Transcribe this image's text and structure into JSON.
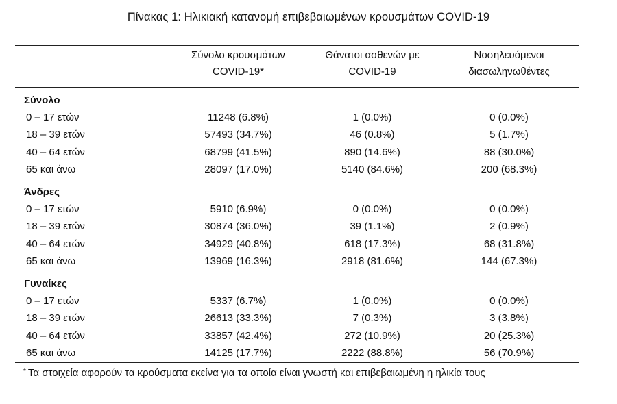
{
  "title": "Πίνακας 1: Ηλικιακή κατανομή επιβεβαιωμένων κρουσμάτων COVID-19",
  "headers": {
    "cases_line1": "Σύνολο κρουσμάτων",
    "cases_line2": "COVID-19*",
    "deaths_line1": "Θάνατοι ασθενών με",
    "deaths_line2": "COVID-19",
    "hosp_line1": "Νοσηλευόμενοι",
    "hosp_line2": "διασωληνωθέντες"
  },
  "sections": [
    {
      "name": "Σύνολο",
      "rows": [
        {
          "age": "0 – 17 ετών",
          "cases": "11248 (6.8%)",
          "deaths": "1 (0.0%)",
          "hosp": "0 (0.0%)"
        },
        {
          "age": "18 – 39 ετών",
          "cases": "57493 (34.7%)",
          "deaths": "46 (0.8%)",
          "hosp": "5 (1.7%)"
        },
        {
          "age": "40 – 64 ετών",
          "cases": "68799 (41.5%)",
          "deaths": "890 (14.6%)",
          "hosp": "88 (30.0%)"
        },
        {
          "age": "65 και άνω",
          "cases": "28097 (17.0%)",
          "deaths": "5140 (84.6%)",
          "hosp": "200 (68.3%)"
        }
      ]
    },
    {
      "name": "Άνδρες",
      "rows": [
        {
          "age": "0 – 17 ετών",
          "cases": "5910 (6.9%)",
          "deaths": "0 (0.0%)",
          "hosp": "0 (0.0%)"
        },
        {
          "age": "18 – 39 ετών",
          "cases": "30874 (36.0%)",
          "deaths": "39 (1.1%)",
          "hosp": "2 (0.9%)"
        },
        {
          "age": "40 – 64 ετών",
          "cases": "34929 (40.8%)",
          "deaths": "618 (17.3%)",
          "hosp": "68 (31.8%)"
        },
        {
          "age": "65 και άνω",
          "cases": "13969 (16.3%)",
          "deaths": "2918 (81.6%)",
          "hosp": "144 (67.3%)"
        }
      ]
    },
    {
      "name": "Γυναίκες",
      "rows": [
        {
          "age": "0 – 17 ετών",
          "cases": "5337 (6.7%)",
          "deaths": "1 (0.0%)",
          "hosp": "0 (0.0%)"
        },
        {
          "age": "18 – 39 ετών",
          "cases": "26613 (33.3%)",
          "deaths": "7 (0.3%)",
          "hosp": "3 (3.8%)"
        },
        {
          "age": "40 – 64 ετών",
          "cases": "33857 (42.4%)",
          "deaths": "272 (10.9%)",
          "hosp": "20 (25.3%)"
        },
        {
          "age": "65 και άνω",
          "cases": "14125 (17.7%)",
          "deaths": "2222 (88.8%)",
          "hosp": "56 (70.9%)"
        }
      ]
    }
  ],
  "footnote": {
    "marker": "*",
    "text": "Τα στοιχεία αφορούν τα κρούσματα εκείνα για τα οποία είναι γνωστή και επιβεβαιωμένη η ηλικία τους"
  }
}
